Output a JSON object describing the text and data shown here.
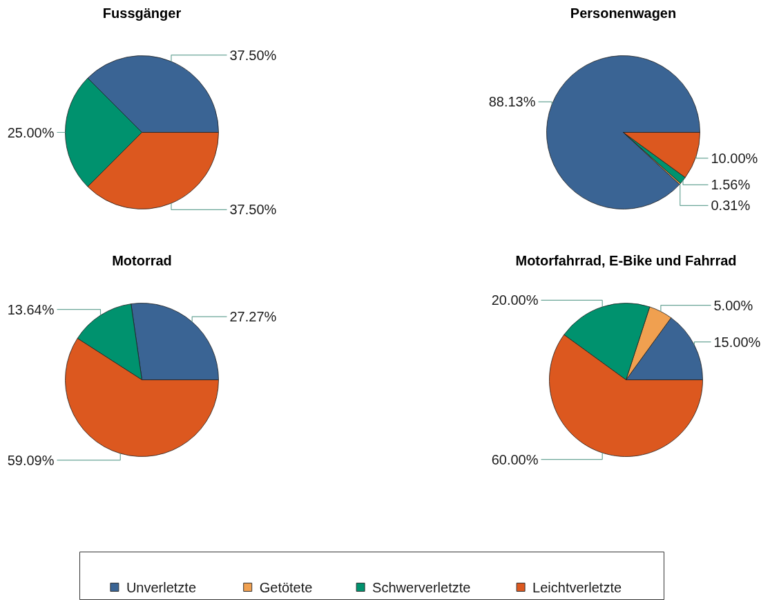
{
  "chart_data": [
    {
      "type": "pie",
      "title": "Fussgänger",
      "categories": [
        null,
        null,
        null
      ],
      "values": [
        37.5,
        25,
        37.5
      ],
      "colors": [
        "#3a6494",
        "#00926e",
        "#dc581f"
      ],
      "value_labels": [
        "37.50%",
        "25.00%",
        "37.50%"
      ]
    },
    {
      "type": "pie",
      "title": "Personenwagen",
      "categories": [
        null,
        null,
        null,
        null
      ],
      "values": [
        88.13,
        0.31,
        1.56,
        10
      ],
      "colors": [
        "#3a6494",
        "#f0a050",
        "#00926e",
        "#dc581f"
      ],
      "value_labels": [
        "88.13%",
        "0.31%",
        "1.56%",
        "10.00%"
      ]
    },
    {
      "type": "pie",
      "title": "Motorrad",
      "categories": [
        null,
        null,
        null
      ],
      "values": [
        27.27,
        13.64,
        59.09
      ],
      "colors": [
        "#3a6494",
        "#00926e",
        "#dc581f"
      ],
      "value_labels": [
        "27.27%",
        "13.64%",
        "59.09%"
      ]
    },
    {
      "type": "pie",
      "title": "Motorfahrrad, E-Bike und Fahrrad",
      "categories": [
        "Unverletzte",
        "Getötete",
        "Schwerverletzte",
        "Leichtverletzte"
      ],
      "values": [
        15,
        5,
        20,
        60
      ],
      "colors": [
        "#3a6494",
        "#f0a050",
        "#00926e",
        "#dc581f"
      ],
      "value_labels": [
        "15.00%",
        "5.00%",
        "20.00%",
        "60.00%"
      ],
      "legend": "bottom"
    }
  ]
}
